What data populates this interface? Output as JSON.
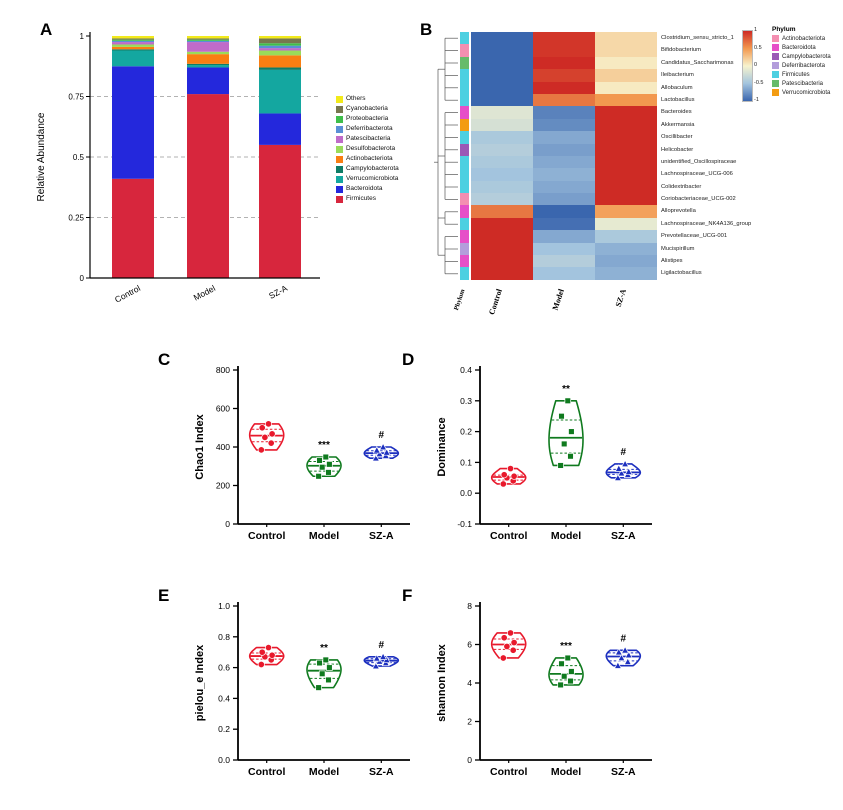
{
  "panel_letters": {
    "A": "A",
    "B": "B",
    "C": "C",
    "D": "D",
    "E": "E",
    "F": "F"
  },
  "chart_data": [
    {
      "id": "A",
      "type": "bar",
      "stacked": true,
      "ylabel": "Relative Abundance",
      "categories": [
        "Control",
        "Model",
        "SZ-A"
      ],
      "ylim": [
        0,
        1
      ],
      "yticks": [
        "0",
        "0.25",
        "0.5",
        "0.75",
        "1"
      ],
      "gridlines": [
        0.25,
        0.5,
        0.75
      ],
      "series": [
        {
          "name": "Firmicutes",
          "color": "#D7263D",
          "values": [
            0.41,
            0.76,
            0.55
          ]
        },
        {
          "name": "Bacteroidota",
          "color": "#2428DC",
          "values": [
            0.465,
            0.11,
            0.13
          ]
        },
        {
          "name": "Verrucomicrobiota",
          "color": "#14A7A0",
          "values": [
            0.065,
            0.01,
            0.18
          ]
        },
        {
          "name": "Campylobacterota",
          "color": "#0E7C66",
          "values": [
            0.005,
            0.005,
            0.01
          ]
        },
        {
          "name": "Actinobacteriota",
          "color": "#F97E12",
          "values": [
            0.01,
            0.04,
            0.05
          ]
        },
        {
          "name": "Desulfobacterota",
          "color": "#9ADB5A",
          "values": [
            0.01,
            0.01,
            0.02
          ]
        },
        {
          "name": "Patescibacteria",
          "color": "#C06BC9",
          "values": [
            0.01,
            0.04,
            0.01
          ]
        },
        {
          "name": "Deferribacterota",
          "color": "#5A8FD6",
          "values": [
            0.005,
            0.005,
            0.01
          ]
        },
        {
          "name": "Proteobacteria",
          "color": "#3FBF4A",
          "values": [
            0.005,
            0.005,
            0.01
          ]
        },
        {
          "name": "Cyanobacteria",
          "color": "#77774F",
          "values": [
            0.005,
            0.005,
            0.02
          ]
        },
        {
          "name": "Others",
          "color": "#F2EA1B",
          "values": [
            0.01,
            0.01,
            0.01
          ]
        }
      ]
    },
    {
      "id": "B",
      "type": "heatmap",
      "columns": [
        "Control",
        "Model",
        "SZ-A"
      ],
      "annotation_label": "Phylum",
      "legend_title": "Phylum",
      "colorbar_ticks": [
        "1",
        "0.5",
        "0",
        "-0.5",
        "-1"
      ],
      "colormap_anchors": [
        [
          -1,
          "#3A66AE"
        ],
        [
          -0.5,
          "#A3C4DE"
        ],
        [
          0,
          "#F7F3CE"
        ],
        [
          0.5,
          "#F2984F"
        ],
        [
          1,
          "#CE2B25"
        ]
      ],
      "phylum_colors": {
        "Actinobacteriota": "#F48FB1",
        "Bacteroidota": "#E64FC8",
        "Campylobacterota": "#9B59B6",
        "Deferribacterota": "#B39DDB",
        "Firmicutes": "#4DD0E1",
        "Patescibacteria": "#66BB6A",
        "Verrucomicrobiota": "#F39C12"
      },
      "row_clusters": [
        [
          0,
          5
        ],
        [
          6,
          13
        ],
        [
          14,
          15
        ],
        [
          16,
          19
        ]
      ],
      "rows": [
        {
          "label": "Clostridium_sensu_stricto_1",
          "phylum": "Firmicutes",
          "values": [
            -1.1,
            0.95,
            0.15
          ]
        },
        {
          "label": "Bifidobacterium",
          "phylum": "Actinobacteriota",
          "values": [
            -1.1,
            0.95,
            0.15
          ]
        },
        {
          "label": "Candidatus_Saccharimonas",
          "phylum": "Patescibacteria",
          "values": [
            -1.05,
            1.0,
            0.05
          ]
        },
        {
          "label": "Ileibacterium",
          "phylum": "Firmicutes",
          "values": [
            -1.1,
            0.9,
            0.2
          ]
        },
        {
          "label": "Allobaculum",
          "phylum": "Firmicutes",
          "values": [
            -1.05,
            1.0,
            0.05
          ]
        },
        {
          "label": "Lactobacillus",
          "phylum": "Firmicutes",
          "values": [
            -1.15,
            0.65,
            0.5
          ]
        },
        {
          "label": "Bacteroides",
          "phylum": "Bacteroidota",
          "values": [
            -0.15,
            -0.85,
            1.0
          ]
        },
        {
          "label": "Akkermansia",
          "phylum": "Verrucomicrobiota",
          "values": [
            -0.2,
            -0.8,
            1.0
          ]
        },
        {
          "label": "Oscillibacter",
          "phylum": "Firmicutes",
          "values": [
            -0.45,
            -0.65,
            1.1
          ]
        },
        {
          "label": "Helicobacter",
          "phylum": "Campylobacterota",
          "values": [
            -0.4,
            -0.7,
            1.1
          ]
        },
        {
          "label": "unidentified_Oscillospiraceae",
          "phylum": "Firmicutes",
          "values": [
            -0.45,
            -0.65,
            1.1
          ]
        },
        {
          "label": "Lachnospiraceae_UCG-006",
          "phylum": "Firmicutes",
          "values": [
            -0.5,
            -0.6,
            1.1
          ]
        },
        {
          "label": "Colidextribacter",
          "phylum": "Firmicutes",
          "values": [
            -0.45,
            -0.65,
            1.1
          ]
        },
        {
          "label": "Coriobacteriaceae_UCG-002",
          "phylum": "Actinobacteriota",
          "values": [
            -0.4,
            -0.7,
            1.1
          ]
        },
        {
          "label": "Alloprevotella",
          "phylum": "Bacteroidota",
          "values": [
            0.65,
            -1.1,
            0.45
          ]
        },
        {
          "label": "Lachnospiraceae_NK4A136_group",
          "phylum": "Firmicutes",
          "values": [
            1.05,
            -0.95,
            -0.1
          ]
        },
        {
          "label": "Prevotellaceae_UCG-001",
          "phylum": "Bacteroidota",
          "values": [
            1.1,
            -0.65,
            -0.45
          ]
        },
        {
          "label": "Mucispirillum",
          "phylum": "Deferribacterota",
          "values": [
            1.1,
            -0.5,
            -0.6
          ]
        },
        {
          "label": "Alistipes",
          "phylum": "Bacteroidota",
          "values": [
            1.05,
            -0.4,
            -0.65
          ]
        },
        {
          "label": "Ligilactobacillus",
          "phylum": "Firmicutes",
          "values": [
            1.1,
            -0.5,
            -0.6
          ]
        }
      ]
    },
    {
      "id": "C",
      "type": "violin",
      "ylabel": "Chao1 Index",
      "ylim": [
        0,
        800
      ],
      "yticks": [
        "0",
        "200",
        "400",
        "600",
        "800"
      ],
      "groups": [
        {
          "name": "Control",
          "color": "#E8192C",
          "marker": "circle",
          "annotation": "",
          "points": [
            385,
            420,
            450,
            468,
            500,
            520
          ]
        },
        {
          "name": "Model",
          "color": "#0F7A1E",
          "marker": "square",
          "annotation": "***",
          "points": [
            248,
            268,
            295,
            310,
            330,
            348
          ]
        },
        {
          "name": "SZ-A",
          "color": "#1C2FBF",
          "marker": "triangle",
          "annotation": "#",
          "points": [
            342,
            355,
            364,
            372,
            383,
            400
          ]
        }
      ]
    },
    {
      "id": "D",
      "type": "violin",
      "ylabel": "Dominance",
      "ylim": [
        -0.1,
        0.4
      ],
      "yticks": [
        "-0.1",
        "0.0",
        "0.1",
        "0.2",
        "0.3",
        "0.4"
      ],
      "groups": [
        {
          "name": "Control",
          "color": "#E8192C",
          "marker": "circle",
          "annotation": "",
          "points": [
            0.03,
            0.04,
            0.05,
            0.055,
            0.06,
            0.08
          ]
        },
        {
          "name": "Model",
          "color": "#0F7A1E",
          "marker": "square",
          "annotation": "**",
          "points": [
            0.09,
            0.12,
            0.16,
            0.2,
            0.25,
            0.3
          ]
        },
        {
          "name": "SZ-A",
          "color": "#1C2FBF",
          "marker": "triangle",
          "annotation": "#",
          "points": [
            0.05,
            0.06,
            0.065,
            0.07,
            0.08,
            0.095
          ]
        }
      ]
    },
    {
      "id": "E",
      "type": "violin",
      "ylabel": "pielou_e Index",
      "ylim": [
        0,
        1
      ],
      "yticks": [
        "0.0",
        "0.2",
        "0.4",
        "0.6",
        "0.8",
        "1.0"
      ],
      "groups": [
        {
          "name": "Control",
          "color": "#E8192C",
          "marker": "circle",
          "annotation": "",
          "points": [
            0.62,
            0.65,
            0.67,
            0.68,
            0.7,
            0.73
          ]
        },
        {
          "name": "Model",
          "color": "#0F7A1E",
          "marker": "square",
          "annotation": "**",
          "points": [
            0.47,
            0.52,
            0.56,
            0.6,
            0.63,
            0.65
          ]
        },
        {
          "name": "SZ-A",
          "color": "#1C2FBF",
          "marker": "triangle",
          "annotation": "#",
          "points": [
            0.61,
            0.63,
            0.64,
            0.65,
            0.66,
            0.67
          ]
        }
      ]
    },
    {
      "id": "F",
      "type": "violin",
      "ylabel": "shannon Index",
      "ylim": [
        0,
        8
      ],
      "yticks": [
        "0",
        "2",
        "4",
        "6",
        "8"
      ],
      "groups": [
        {
          "name": "Control",
          "color": "#E8192C",
          "marker": "circle",
          "annotation": "",
          "points": [
            5.3,
            5.7,
            5.9,
            6.1,
            6.35,
            6.6
          ]
        },
        {
          "name": "Model",
          "color": "#0F7A1E",
          "marker": "square",
          "annotation": "***",
          "points": [
            3.9,
            4.1,
            4.35,
            4.6,
            5.0,
            5.3
          ]
        },
        {
          "name": "SZ-A",
          "color": "#1C2FBF",
          "marker": "triangle",
          "annotation": "#",
          "points": [
            4.9,
            5.1,
            5.3,
            5.45,
            5.6,
            5.7
          ]
        }
      ]
    }
  ]
}
